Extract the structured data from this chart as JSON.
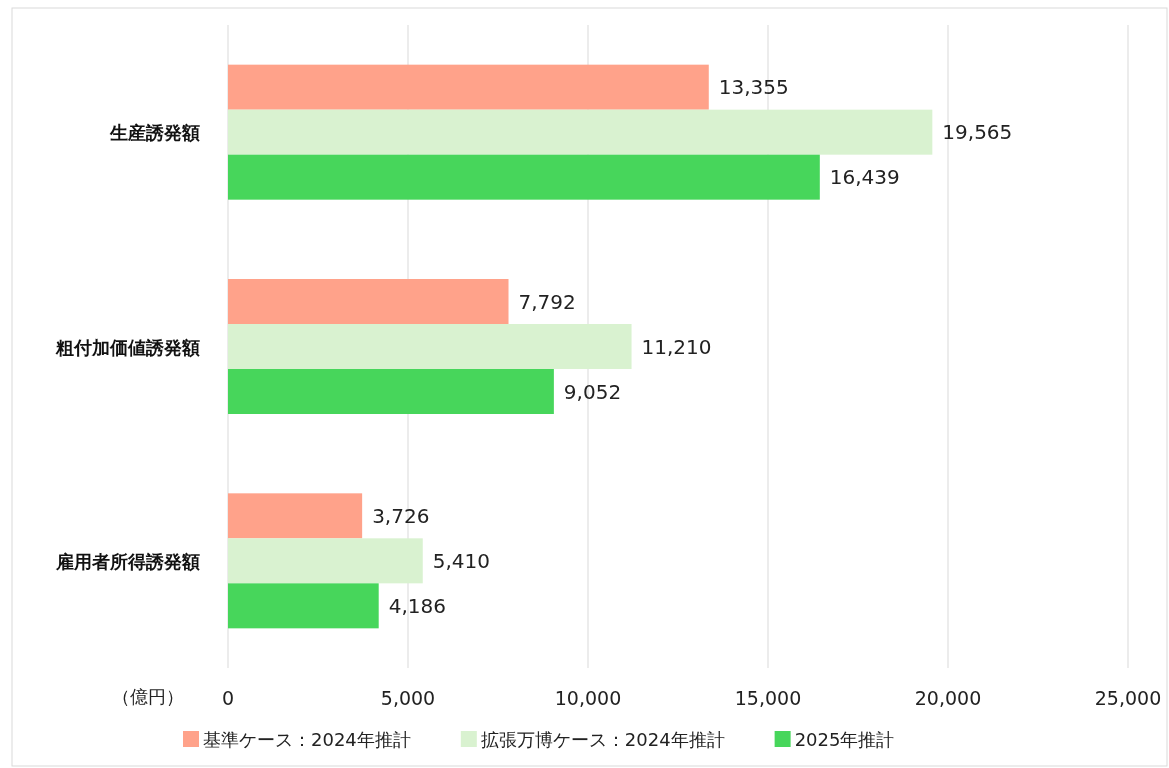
{
  "chart_data": {
    "type": "bar",
    "orientation": "horizontal",
    "categories": [
      "生産誘発額",
      "粗付加価値誘発額",
      "雇用者所得誘発額"
    ],
    "series": [
      {
        "name": "基準ケース：2024年推計",
        "color": "#ffa28a",
        "values": [
          13355,
          7792,
          3726
        ],
        "value_labels": [
          "13,355",
          "7,792",
          "3,726"
        ]
      },
      {
        "name": "拡張万博ケース：2024年推計",
        "color": "#d9f2d0",
        "values": [
          19565,
          11210,
          5410
        ],
        "value_labels": [
          "19,565",
          "11,210",
          "5,410"
        ]
      },
      {
        "name": "2025年推計",
        "color": "#47d65b",
        "values": [
          16439,
          9052,
          4186
        ],
        "value_labels": [
          "16,439",
          "9,052",
          "4,186"
        ]
      }
    ],
    "xlim": [
      0,
      25000
    ],
    "xticks": [
      0,
      {
        "value": 5000,
        "label": "5,000"
      },
      {
        "value": 10000,
        "label": "10,000"
      },
      {
        "value": 15000,
        "label": "15,000"
      },
      {
        "value": 20000,
        "label": "20,000"
      },
      {
        "value": 25000,
        "label": "25,000"
      }
    ],
    "xlabel": "（億円）",
    "grid": "x",
    "legend": "bottom"
  }
}
